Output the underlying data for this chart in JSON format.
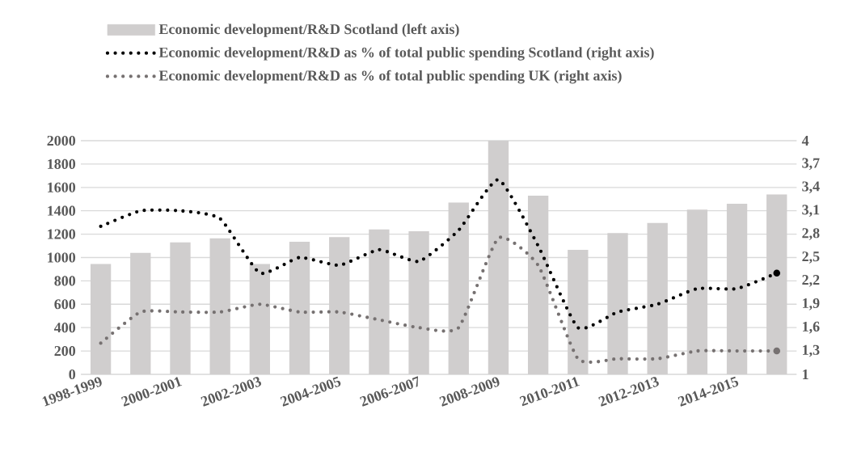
{
  "chart_data": {
    "type": "bar",
    "categories": [
      "1998-1999",
      null,
      "2000-2001",
      null,
      "2002-2003",
      null,
      "2004-2005",
      null,
      "2006-2007",
      null,
      "2008-2009",
      null,
      "2010-2011",
      null,
      "2012-2013",
      null,
      "2014-2015",
      null
    ],
    "series": [
      {
        "name": "Economic development/R&D Scotland (left axis)",
        "color": "#d0cece",
        "values": [
          945,
          1040,
          1130,
          1165,
          945,
          1135,
          1175,
          1240,
          1225,
          1470,
          2000,
          1530,
          1065,
          1210,
          1295,
          1410,
          1460,
          1540
        ]
      },
      {
        "name": "Economic development/R&D as % of total public spending Scotland (right axis)",
        "type": "line",
        "axis": "y2",
        "color": "#000000",
        "line_style": "dotted",
        "values": [
          2.9,
          3.1,
          3.1,
          3.0,
          2.3,
          2.5,
          2.4,
          2.6,
          2.45,
          2.85,
          3.5,
          2.65,
          1.6,
          1.8,
          1.9,
          2.1,
          2.1,
          2.3
        ]
      },
      {
        "name": "Economic development/R&D as % of total public spending UK (right axis)",
        "type": "line",
        "axis": "y2",
        "color": "#767171",
        "line_style": "dotted",
        "values": [
          1.4,
          1.8,
          1.8,
          1.8,
          1.9,
          1.8,
          1.8,
          1.7,
          1.6,
          1.6,
          2.75,
          2.4,
          1.2,
          1.2,
          1.2,
          1.3,
          1.3,
          1.3
        ]
      }
    ],
    "ylim": [
      0,
      2000
    ],
    "yticks": [
      0,
      200,
      400,
      600,
      800,
      1000,
      1200,
      1400,
      1600,
      1800,
      2000
    ],
    "y2lim": [
      1,
      4
    ],
    "y2ticks": [
      1,
      {
        "value": 1.3,
        "label": "1,3"
      },
      {
        "value": 1.6,
        "label": "1,6"
      },
      {
        "value": 1.9,
        "label": "1,9"
      },
      {
        "value": 2.2,
        "label": "2,2"
      },
      {
        "value": 2.5,
        "label": "2,5"
      },
      {
        "value": 2.8,
        "label": "2,8"
      },
      {
        "value": 3.1,
        "label": "3,1"
      },
      {
        "value": 3.4,
        "label": "3,4"
      },
      {
        "value": 3.7,
        "label": "3,7"
      },
      4
    ],
    "grid": "y",
    "legend": "top",
    "marker": "none"
  }
}
